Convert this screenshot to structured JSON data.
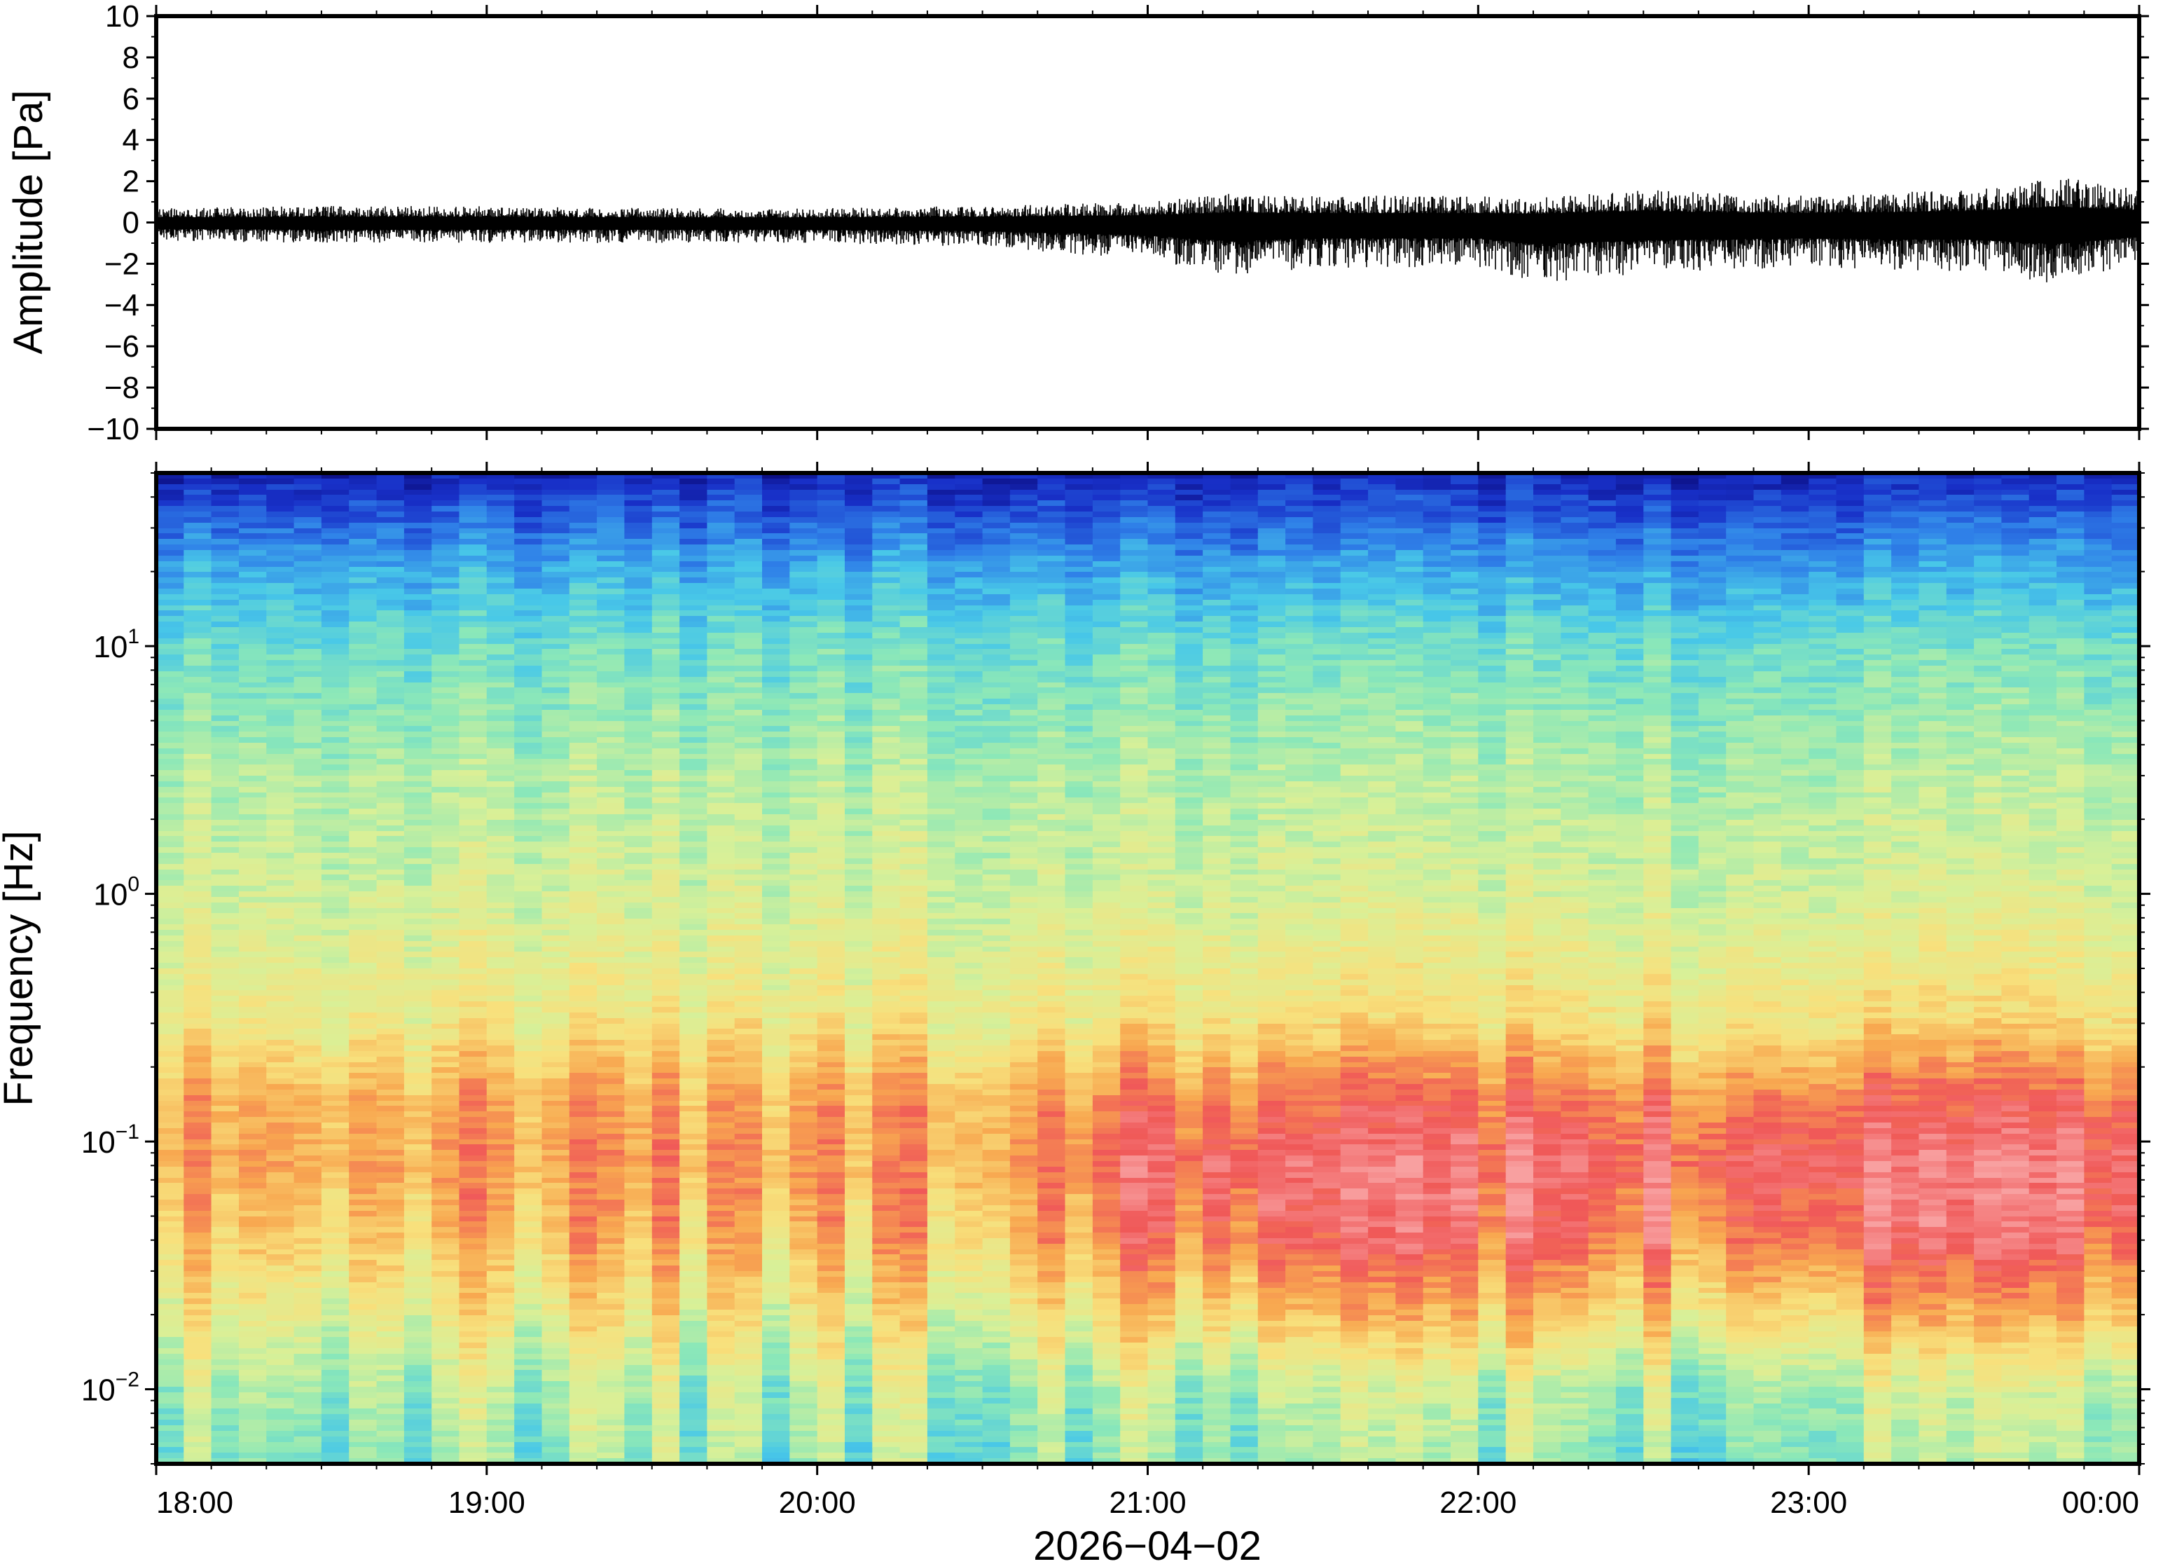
{
  "chart_data": [
    {
      "type": "line",
      "panel": "waveform",
      "title": "",
      "ylabel": "Amplitude [Pa]",
      "ylim": [
        -10,
        10
      ],
      "yticks": [
        {
          "value": 10,
          "label": "10"
        },
        {
          "value": 8,
          "label": "8"
        },
        {
          "value": 6,
          "label": "6"
        },
        {
          "value": 4,
          "label": "4"
        },
        {
          "value": 2,
          "label": "2"
        },
        {
          "value": 0,
          "label": "0"
        },
        {
          "value": -2,
          "label": "−2"
        },
        {
          "value": -4,
          "label": "−4"
        },
        {
          "value": -6,
          "label": "−6"
        },
        {
          "value": -8,
          "label": "−8"
        },
        {
          "value": -10,
          "label": "−10"
        }
      ],
      "xlim": [
        "18:00",
        "00:00"
      ],
      "series": [
        {
          "color": "#000000",
          "envelope": {
            "x": [
              "18:00",
              "18:30",
              "19:00",
              "19:30",
              "20:00",
              "20:30",
              "21:00",
              "21:15",
              "21:30",
              "22:00",
              "22:10",
              "22:30",
              "22:45",
              "23:00",
              "23:30",
              "23:45",
              "00:00"
            ],
            "max": [
              0.7,
              0.8,
              0.8,
              0.7,
              0.7,
              0.8,
              1.0,
              1.4,
              1.3,
              1.3,
              1.2,
              1.6,
              1.4,
              1.3,
              1.6,
              2.2,
              1.7
            ],
            "min": [
              -0.9,
              -1.0,
              -1.0,
              -1.0,
              -1.0,
              -1.2,
              -1.8,
              -2.6,
              -2.2,
              -2.2,
              -3.0,
              -2.5,
              -2.3,
              -2.2,
              -2.4,
              -3.0,
              -2.0
            ]
          }
        }
      ]
    },
    {
      "type": "heatmap",
      "panel": "spectrogram",
      "title": "",
      "ylabel": "Frequency [Hz]",
      "yscale": "log",
      "ylim": [
        0.005,
        50
      ],
      "yticks": [
        {
          "value": 10,
          "base": "10",
          "exp": "1"
        },
        {
          "value": 1,
          "base": "10",
          "exp": "0"
        },
        {
          "value": 0.1,
          "base": "10",
          "exp": "−1"
        },
        {
          "value": 0.01,
          "base": "10",
          "exp": "−2"
        }
      ],
      "xlabel": "2026−04−02",
      "xticks": [
        "18:00",
        "19:00",
        "20:00",
        "21:00",
        "22:00",
        "23:00",
        "00:00"
      ],
      "colormap": [
        "#0a0a7a",
        "#1830c8",
        "#2f80e8",
        "#48c8e8",
        "#8ce8b8",
        "#d8f098",
        "#f8e07c",
        "#f8a850",
        "#f05858",
        "#f8a0a0"
      ],
      "power_profile": {
        "frequency_hz": [
          0.005,
          0.01,
          0.02,
          0.04,
          0.08,
          0.15,
          0.3,
          1,
          3,
          10,
          20,
          50
        ],
        "early_level": [
          0.45,
          0.5,
          0.62,
          0.72,
          0.78,
          0.76,
          0.63,
          0.55,
          0.5,
          0.4,
          0.3,
          0.08
        ],
        "late_level": [
          0.45,
          0.5,
          0.7,
          0.86,
          0.92,
          0.84,
          0.66,
          0.55,
          0.5,
          0.4,
          0.28,
          0.08
        ]
      },
      "grid": false
    }
  ]
}
